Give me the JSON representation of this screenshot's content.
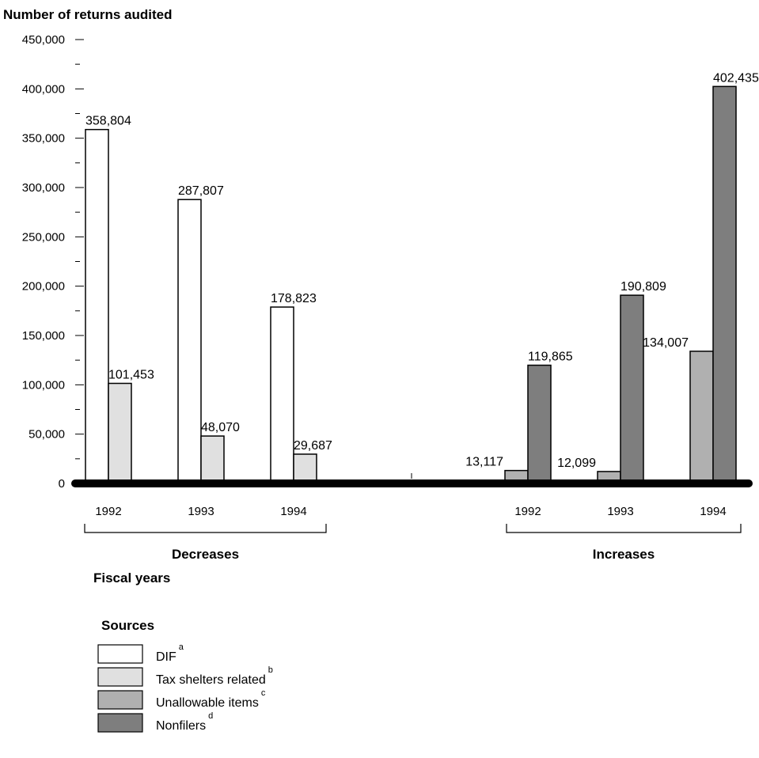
{
  "chart_data": {
    "type": "bar",
    "ylabel": "Number of returns audited",
    "xlabel": "Fiscal years",
    "ylim": [
      0,
      450000
    ],
    "y_ticks": [
      0,
      50000,
      100000,
      150000,
      200000,
      250000,
      300000,
      350000,
      400000,
      450000
    ],
    "y_tick_labels": [
      "0",
      "50,000",
      "100,000",
      "150,000",
      "200,000",
      "250,000",
      "300,000",
      "350,000",
      "400,000",
      "450,000"
    ],
    "groups": [
      {
        "label": "Decreases",
        "years": [
          "1992",
          "1993",
          "1994"
        ],
        "bars": [
          {
            "year": "1992",
            "series": "DIF",
            "value": 358804,
            "label": "358,804"
          },
          {
            "year": "1992",
            "series": "Tax shelters related",
            "value": 101453,
            "label": "101,453"
          },
          {
            "year": "1993",
            "series": "DIF",
            "value": 287807,
            "label": "287,807"
          },
          {
            "year": "1993",
            "series": "Tax shelters related",
            "value": 48070,
            "label": "48,070"
          },
          {
            "year": "1994",
            "series": "DIF",
            "value": 178823,
            "label": "178,823"
          },
          {
            "year": "1994",
            "series": "Tax shelters related",
            "value": 29687,
            "label": "29,687"
          }
        ]
      },
      {
        "label": "Increases",
        "years": [
          "1992",
          "1993",
          "1994"
        ],
        "bars": [
          {
            "year": "1992",
            "series": "Unallowable items",
            "value": 13117,
            "label": "13,117"
          },
          {
            "year": "1992",
            "series": "Nonfilers",
            "value": 119865,
            "label": "119,865"
          },
          {
            "year": "1993",
            "series": "Unallowable items",
            "value": 12099,
            "label": "12,099"
          },
          {
            "year": "1993",
            "series": "Nonfilers",
            "value": 190809,
            "label": "190,809"
          },
          {
            "year": "1994",
            "series": "Unallowable items",
            "value": 134007,
            "label": "134,007"
          },
          {
            "year": "1994",
            "series": "Nonfilers",
            "value": 402435,
            "label": "402,435"
          }
        ]
      }
    ],
    "legend": {
      "title": "Sources",
      "placement": "bottom-left",
      "items": [
        {
          "name": "DIF",
          "note": "a",
          "color": "#ffffff"
        },
        {
          "name": "Tax shelters related",
          "note": "b",
          "color": "#e0e0e0"
        },
        {
          "name": "Unallowable items",
          "note": "c",
          "color": "#b0b0b0"
        },
        {
          "name": "Nonfilers",
          "note": "d",
          "color": "#7e7e7e"
        }
      ]
    },
    "grid": false
  }
}
